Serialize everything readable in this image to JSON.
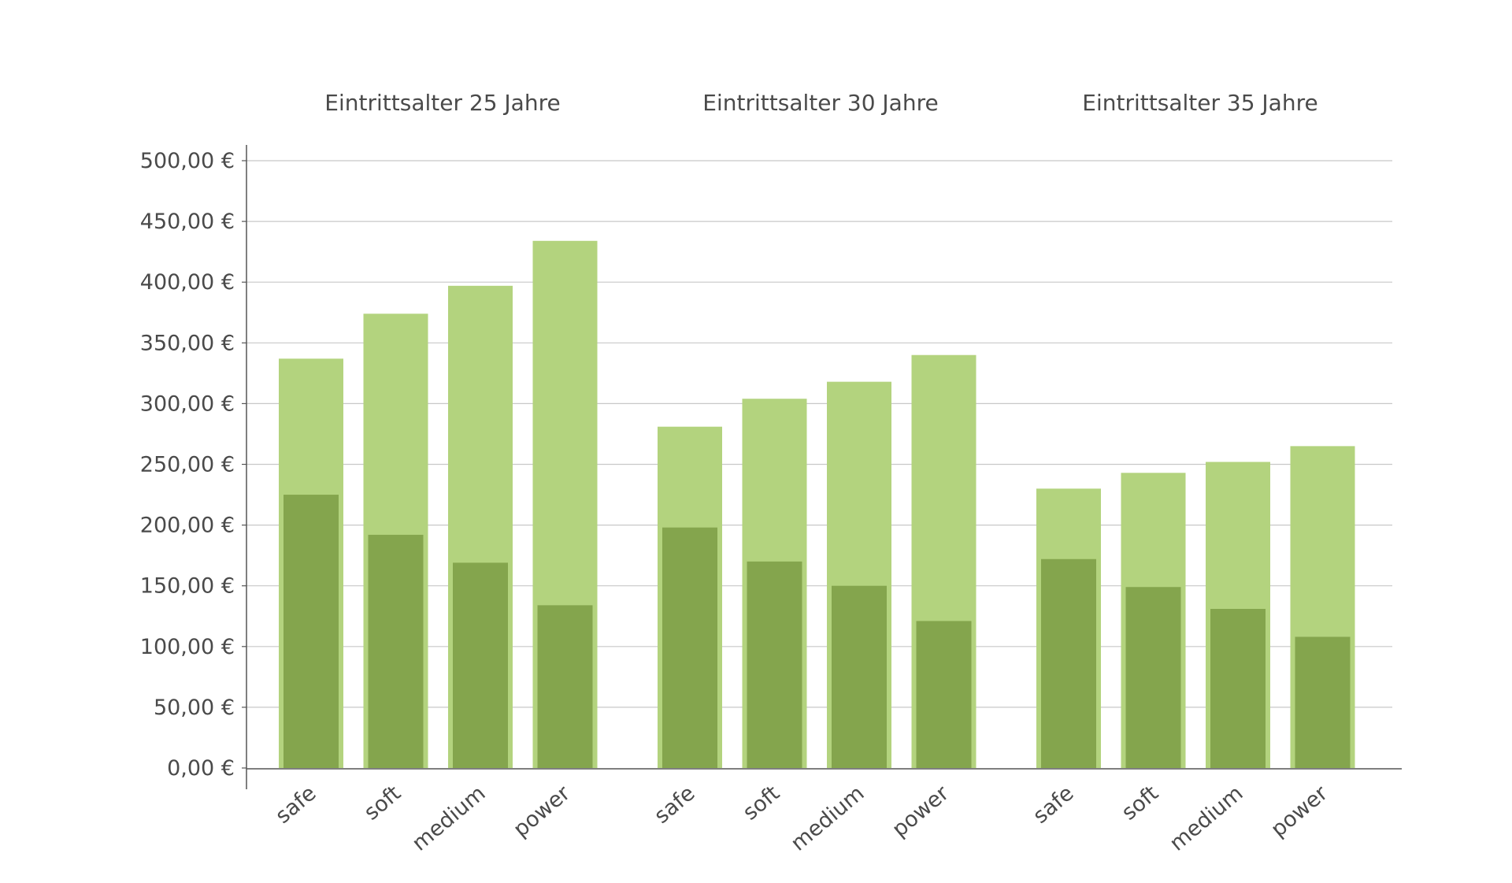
{
  "chart_data": {
    "type": "bar",
    "layout": "grouped-overlay",
    "y_tick_labels": [
      "0,00 €",
      "50,00 €",
      "100,00 €",
      "150,00 €",
      "200,00 €",
      "250,00 €",
      "300,00 €",
      "350,00 €",
      "400,00 €",
      "450,00 €",
      "500,00 €"
    ],
    "ylim": [
      0,
      500
    ],
    "grid": true,
    "groups": [
      {
        "title": "Eintrittsalter 25 Jahre",
        "categories": [
          "safe",
          "soft",
          "medium",
          "power"
        ],
        "series": [
          {
            "values": [
              337,
              374,
              397,
              434
            ]
          },
          {
            "values": [
              225,
              192,
              169,
              134
            ]
          }
        ]
      },
      {
        "title": "Eintrittsalter 30 Jahre",
        "categories": [
          "safe",
          "soft",
          "medium",
          "power"
        ],
        "series": [
          {
            "values": [
              281,
              304,
              318,
              340
            ]
          },
          {
            "values": [
              198,
              170,
              150,
              121
            ]
          }
        ]
      },
      {
        "title": "Eintrittsalter 35 Jahre",
        "categories": [
          "safe",
          "soft",
          "medium",
          "power"
        ],
        "series": [
          {
            "values": [
              230,
              243,
              252,
              265
            ]
          },
          {
            "values": [
              172,
              149,
              131,
              108
            ]
          }
        ]
      }
    ],
    "colors": {
      "outer": "#b3d37e",
      "inner": "#84a54d",
      "grid": "#c8c8c8",
      "axis": "#555555",
      "text": "#4a4a4a"
    }
  }
}
